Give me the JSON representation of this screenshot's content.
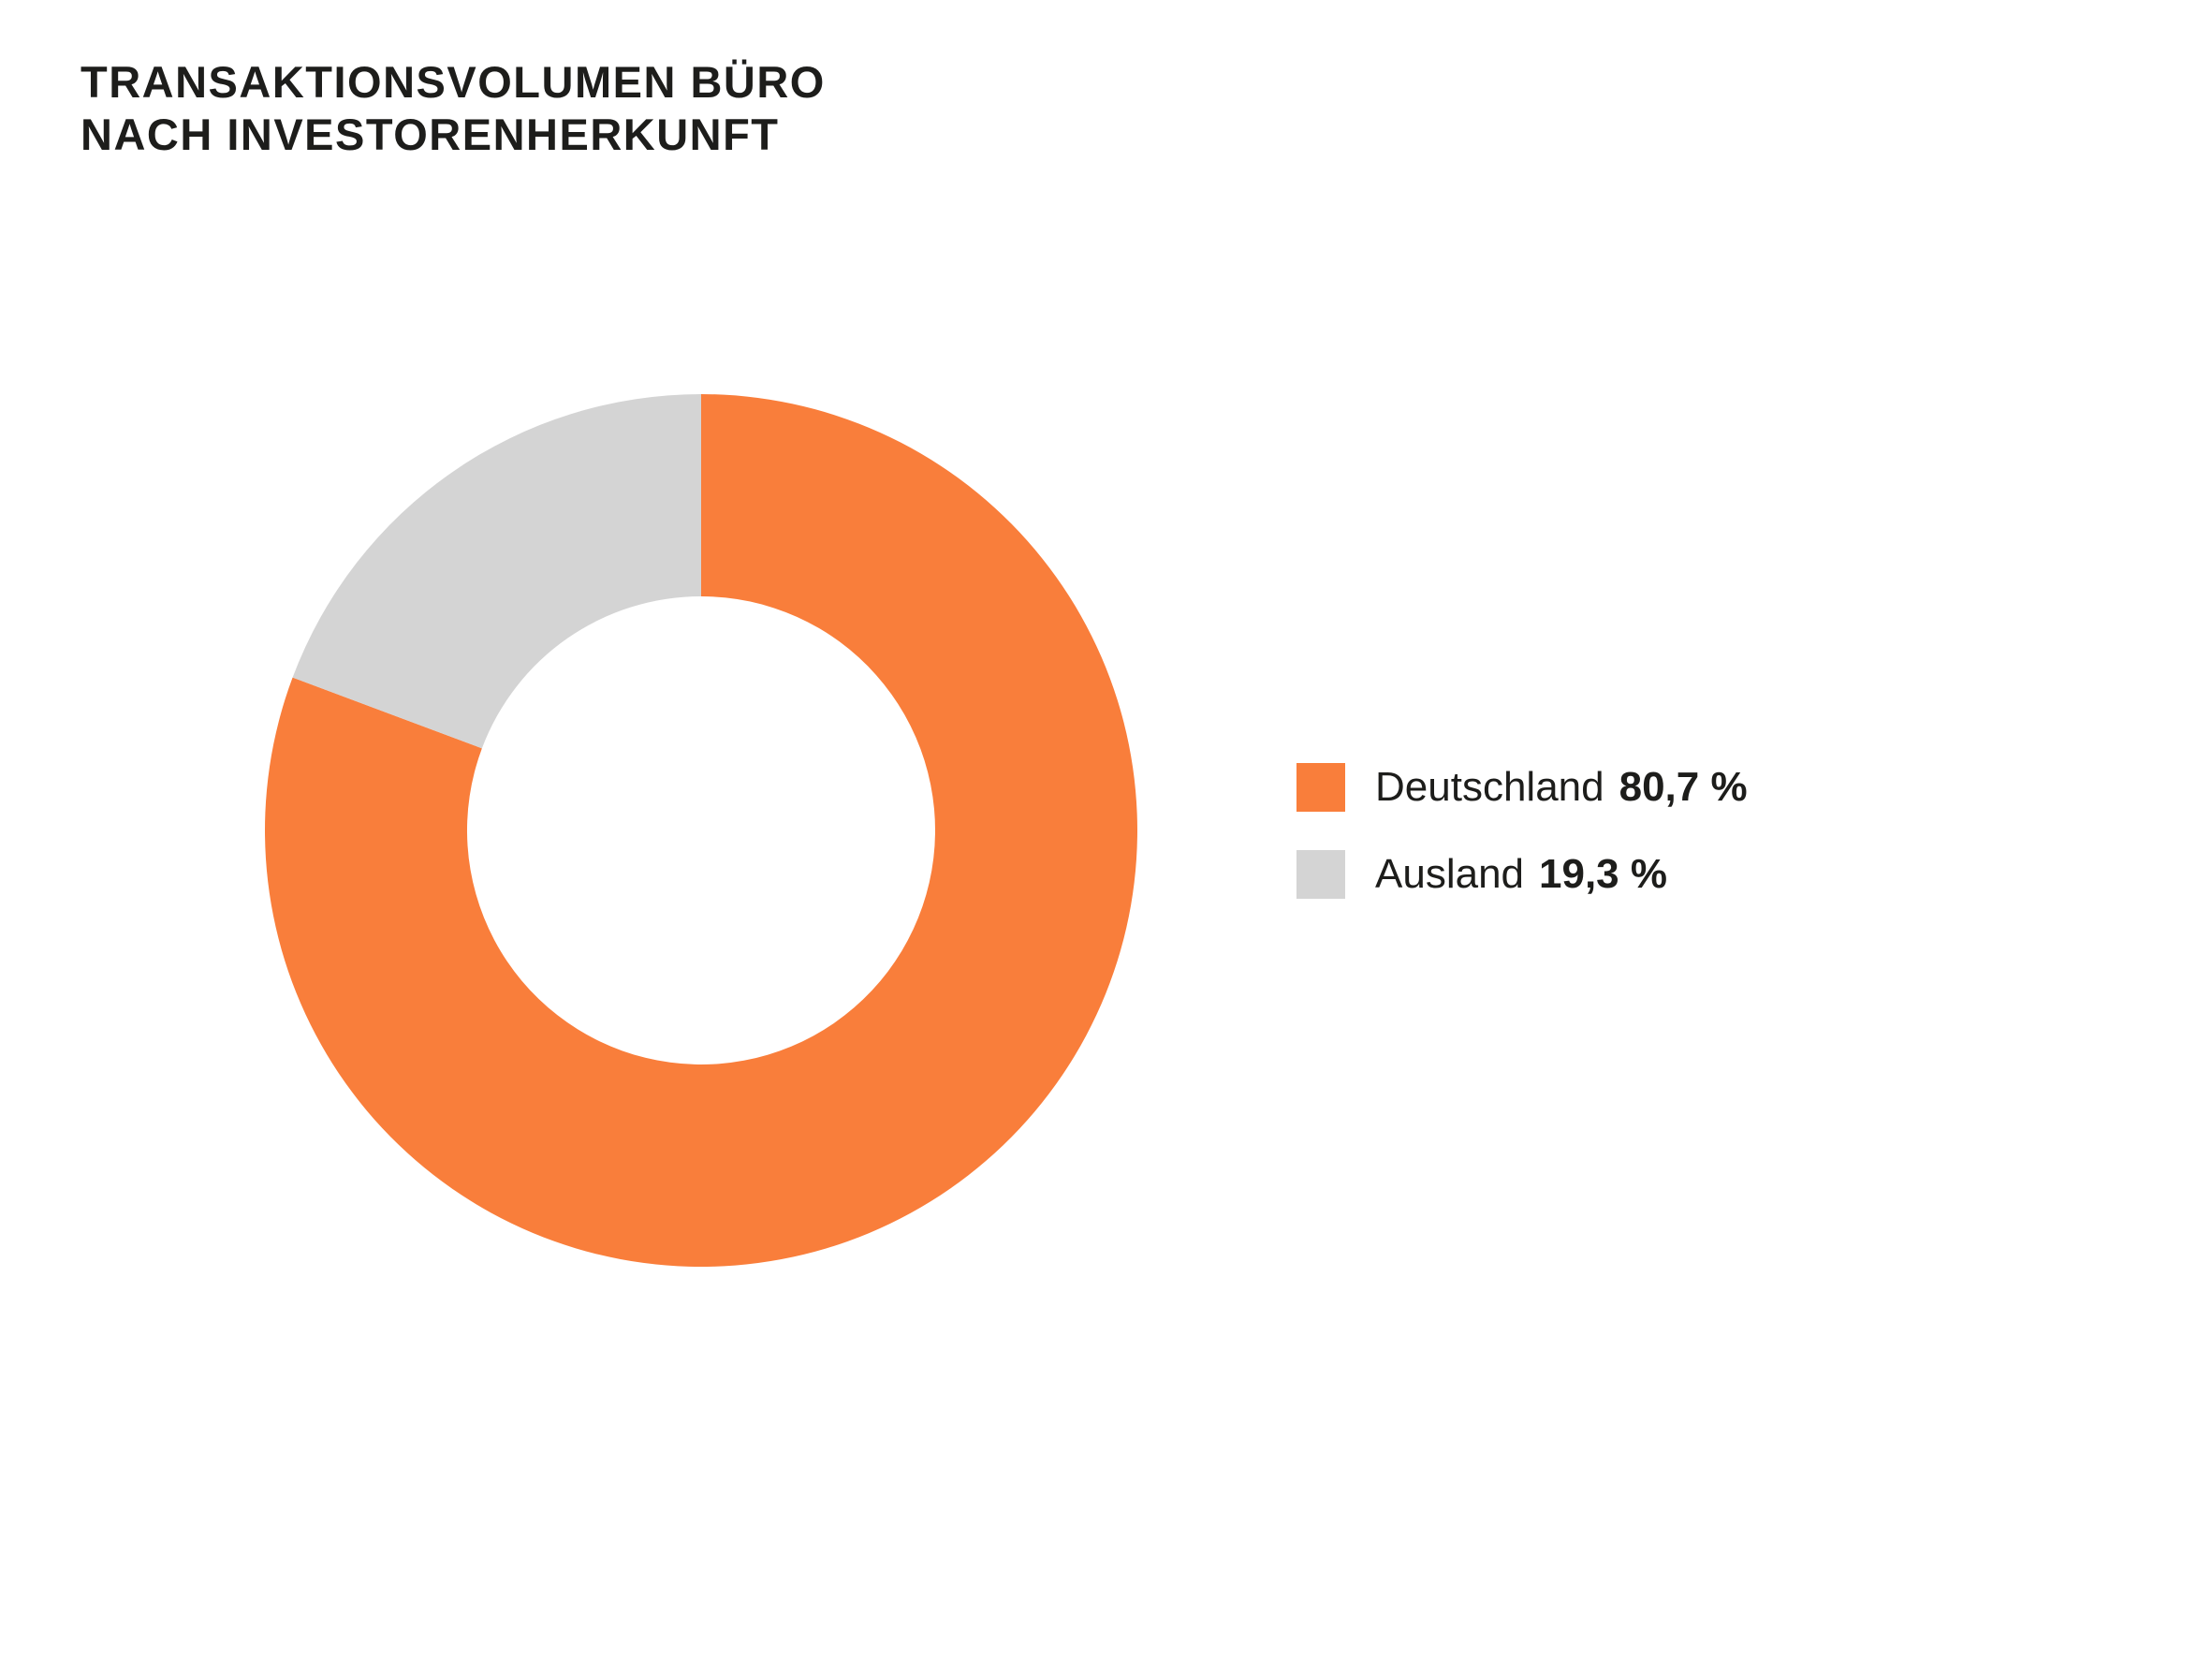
{
  "header": {
    "title_line1": "TRANSAKTIONSVOLUMEN BÜRO",
    "title_line2": "NACH INVESTORENHERKUNFT"
  },
  "chart_data": {
    "type": "pie",
    "subtype": "donut",
    "title": "TRANSAKTIONSVOLUMEN BÜRO NACH INVESTORENHERKUNFT",
    "labels": [
      "Deutschland",
      "Ausland"
    ],
    "values": [
      80.7,
      19.3
    ],
    "display_values": [
      "80,7 %",
      "19,3 %"
    ],
    "unit": "%",
    "colors": [
      "#F97E3B",
      "#D4D4D4"
    ],
    "start_angle_deg": 0,
    "direction": "clockwise",
    "inner_radius_ratio": 0.5365,
    "legend_position": "right",
    "grid": false
  },
  "legend": {
    "items": [
      {
        "label": "Deutschland",
        "value": "80,7 %",
        "color": "#F97E3B"
      },
      {
        "label": "Ausland",
        "value": "19,3 %",
        "color": "#D4D4D4"
      }
    ]
  }
}
